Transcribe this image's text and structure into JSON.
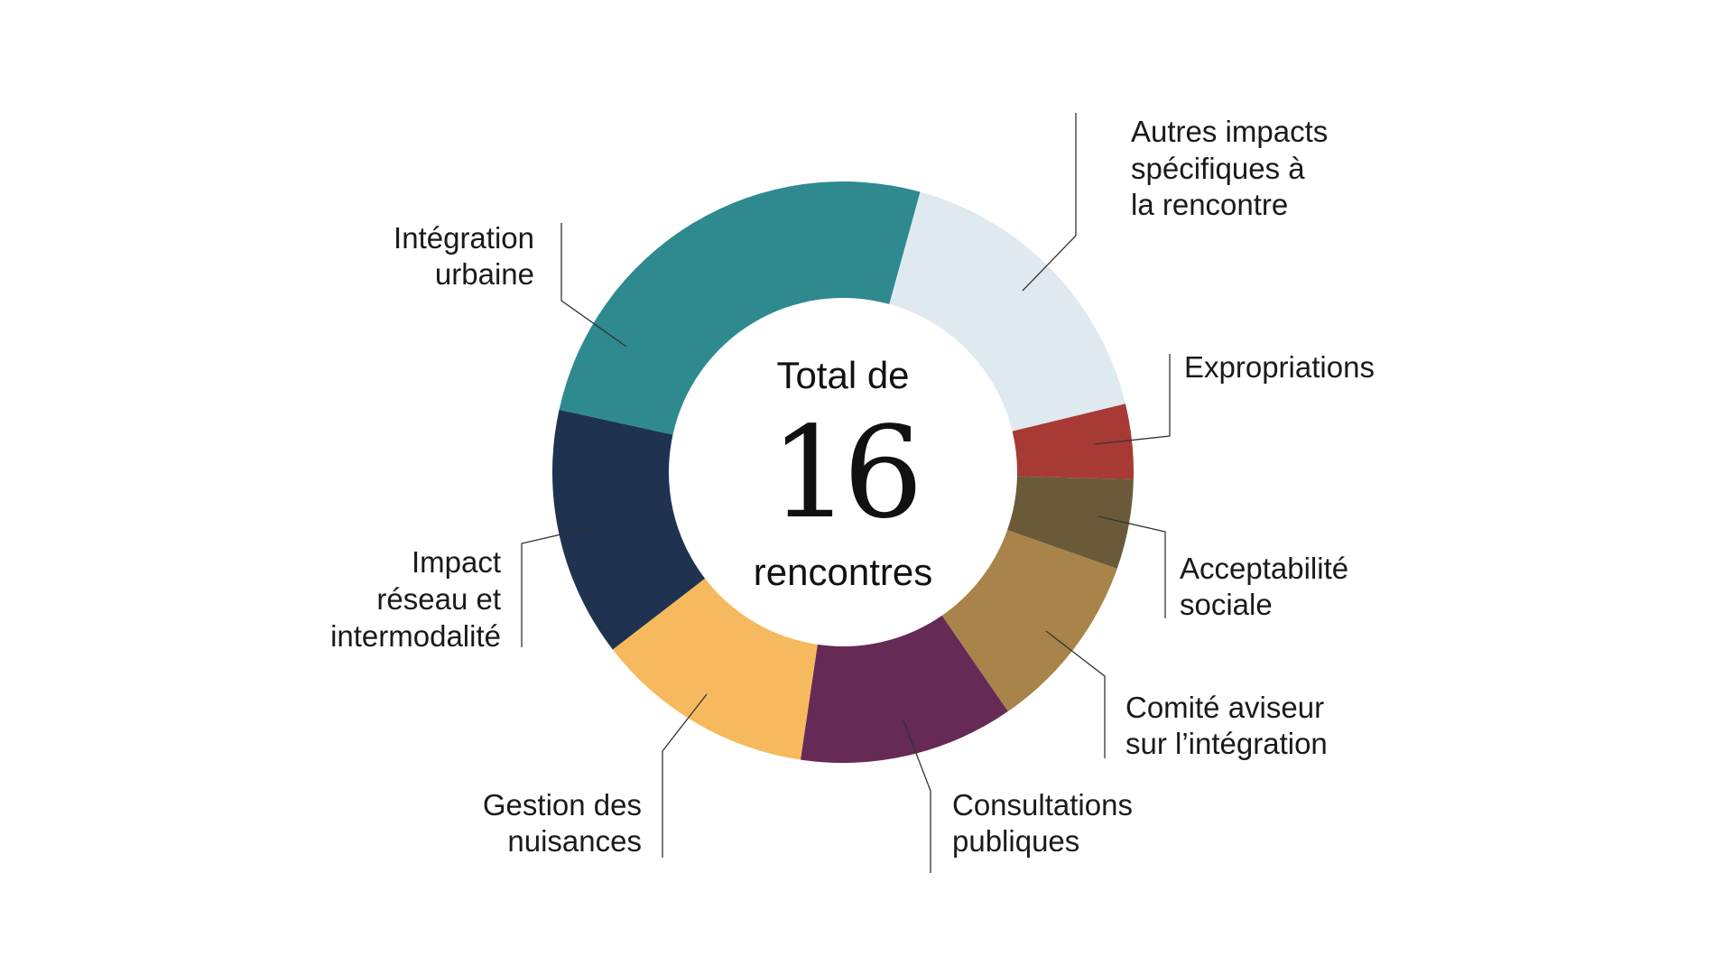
{
  "chart_data": {
    "type": "pie",
    "variant": "donut",
    "center": {
      "line1": "Total de",
      "value": "16",
      "line2": "rencontres"
    },
    "total": 16,
    "unit": "approximate share of ring (degrees estimated from image)",
    "slices": [
      {
        "name": "Autres impacts spécifiques à la rencontre",
        "lines": [
          "Autres impacts",
          "spécifiques à",
          "la rencontre"
        ],
        "value": 61,
        "color": "#dfeaf0"
      },
      {
        "name": "Expropriations",
        "lines": [
          "Expropriations"
        ],
        "value": 15,
        "color": "#a83a35"
      },
      {
        "name": "Acceptabilité sociale",
        "lines": [
          "Acceptabilité",
          "sociale"
        ],
        "value": 18,
        "color": "#6b5a3a"
      },
      {
        "name": "Comité aviseur sur l’intégration",
        "lines": [
          "Comité aviseur",
          "sur l’intégration"
        ],
        "value": 36,
        "color": "#a8834a"
      },
      {
        "name": "Consultations publiques",
        "lines": [
          "Consultations",
          "publiques"
        ],
        "value": 43,
        "color": "#652a55"
      },
      {
        "name": "Gestion des nuisances",
        "lines": [
          "Gestion des",
          "nuisances"
        ],
        "value": 44,
        "color": "#f6b95d"
      },
      {
        "name": "Impact réseau et intermodalité",
        "lines": [
          "Impact",
          "réseau et",
          "intermodalité"
        ],
        "value": 50,
        "color": "#1f3350"
      },
      {
        "name": "Intégration urbaine",
        "lines": [
          "Intégration",
          "urbaine"
        ],
        "value": 93,
        "color": "#2e8a8f"
      }
    ],
    "start_angle_deg": 15.4,
    "legend": "none (direct labels)"
  }
}
